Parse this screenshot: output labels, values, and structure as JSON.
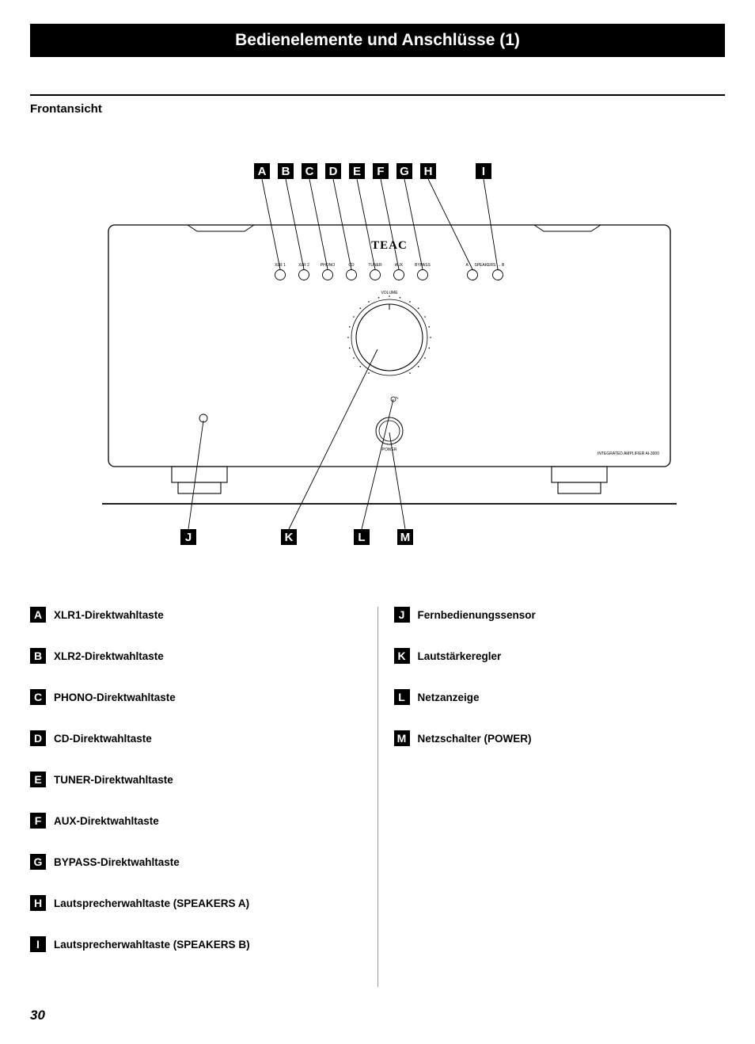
{
  "header": {
    "title": "Bedienelemente und Anschlüsse (1)"
  },
  "subtitle": "Frontansicht",
  "page_number": "30",
  "diagram": {
    "brand": "TEAC",
    "volume_label": "VOLUME",
    "power_label": "POWER",
    "model_label": "INTEGRATED AMPLIFIER AI-3000",
    "top_buttons": [
      {
        "letter": "A",
        "caption": "XLR 1"
      },
      {
        "letter": "B",
        "caption": "XLR 2"
      },
      {
        "letter": "C",
        "caption": "PHONO"
      },
      {
        "letter": "D",
        "caption": "CD"
      },
      {
        "letter": "E",
        "caption": "TUNER"
      },
      {
        "letter": "F",
        "caption": "AUX"
      },
      {
        "letter": "G",
        "caption": "BYPASS"
      },
      {
        "letter": "H",
        "caption": "A ← SPEAKERS → B"
      }
    ],
    "top_extra": {
      "letter": "I"
    },
    "bottom_callouts": [
      {
        "letter": "J"
      },
      {
        "letter": "K"
      },
      {
        "letter": "L"
      },
      {
        "letter": "M"
      }
    ]
  },
  "legend_left": [
    {
      "letter": "A",
      "text": "XLR1-Direktwahltaste"
    },
    {
      "letter": "B",
      "text": "XLR2-Direktwahltaste"
    },
    {
      "letter": "C",
      "text": "PHONO-Direktwahltaste"
    },
    {
      "letter": "D",
      "text": "CD-Direktwahltaste"
    },
    {
      "letter": "E",
      "text": "TUNER-Direktwahltaste"
    },
    {
      "letter": "F",
      "text": "AUX-Direktwahltaste"
    },
    {
      "letter": "G",
      "text": "BYPASS-Direktwahltaste"
    },
    {
      "letter": "H",
      "text": "Lautsprecherwahltaste (SPEAKERS A)"
    },
    {
      "letter": "I",
      "text": "Lautsprecherwahltaste (SPEAKERS B)"
    }
  ],
  "legend_right": [
    {
      "letter": "J",
      "text": "Fernbedienungssensor"
    },
    {
      "letter": "K",
      "text": "Lautstärkeregler"
    },
    {
      "letter": "L",
      "text": "Netzanzeige"
    },
    {
      "letter": "M",
      "text": "Netzschalter (POWER)"
    }
  ],
  "style": {
    "header_bg": "#000000",
    "header_fg": "#ffffff",
    "page_bg": "#ffffff",
    "diagram_stroke": "#000000",
    "divider_color": "#999999",
    "legend_box_bg": "#000000",
    "legend_box_fg": "#ffffff"
  }
}
